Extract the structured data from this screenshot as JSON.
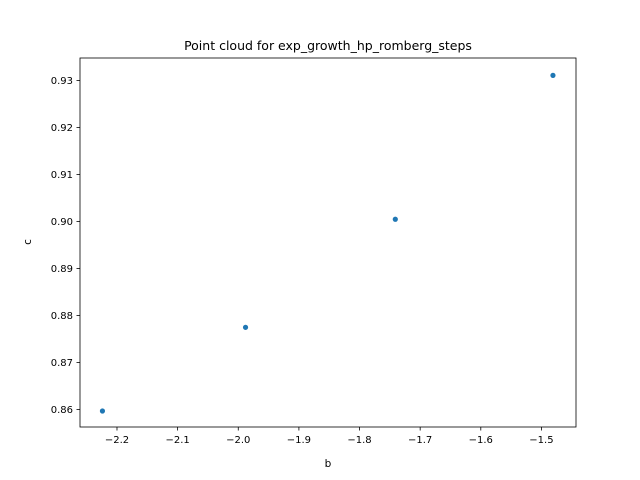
{
  "chart_data": {
    "type": "scatter",
    "title": "Point cloud for exp_growth_hp_romberg_steps",
    "xlabel": "b",
    "ylabel": "c",
    "xlim": [
      -2.261,
      -1.443
    ],
    "ylim": [
      0.8563,
      0.9348
    ],
    "x_ticks": [
      -2.2,
      -2.1,
      -2.0,
      -1.9,
      -1.8,
      -1.7,
      -1.6,
      -1.5
    ],
    "x_tick_labels": [
      "−2.2",
      "−2.1",
      "−2.0",
      "−1.9",
      "−1.8",
      "−1.7",
      "−1.6",
      "−1.5"
    ],
    "y_ticks": [
      0.86,
      0.87,
      0.88,
      0.89,
      0.9,
      0.91,
      0.92,
      0.93
    ],
    "y_tick_labels": [
      "0.86",
      "0.87",
      "0.88",
      "0.89",
      "0.90",
      "0.91",
      "0.92",
      "0.93"
    ],
    "grid": false,
    "marker_color": "#1f77b4",
    "points": [
      {
        "x": -2.224,
        "y": 0.8597
      },
      {
        "x": -1.988,
        "y": 0.8775
      },
      {
        "x": -1.741,
        "y": 0.9005
      },
      {
        "x": -1.481,
        "y": 0.9311
      }
    ]
  }
}
